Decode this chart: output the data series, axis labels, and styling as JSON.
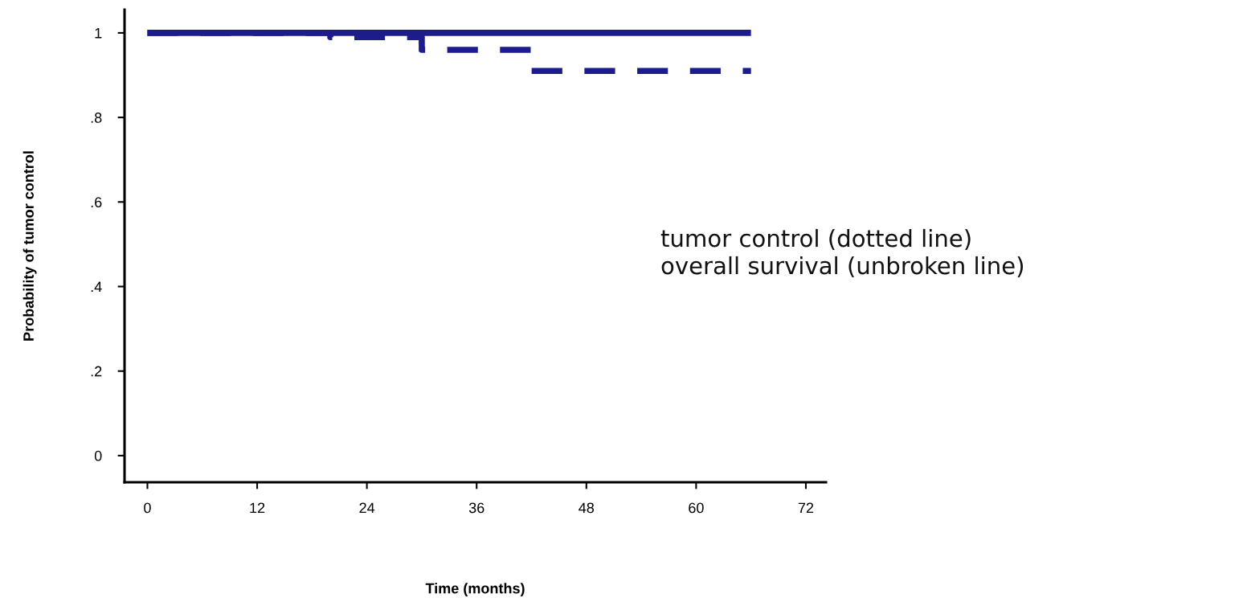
{
  "chart_data": {
    "type": "step",
    "xlabel": "Time (months)",
    "ylabel": "Probability of tumor control",
    "series": [
      {
        "x": [
          0,
          20,
          30,
          42,
          66
        ],
        "values": [
          1,
          0.99,
          0.96,
          0.91,
          0.91
        ],
        "color": "#1c1c8c",
        "line_style": "dashed"
      },
      {
        "x": [
          0,
          66
        ],
        "values": [
          1,
          1
        ],
        "color": "#1c1c8c",
        "line_style": "solid"
      }
    ],
    "xlim": [
      -2.5,
      74.2
    ],
    "ylim": [
      -0.063,
      1.055
    ],
    "xticks": [
      0,
      12,
      24,
      36,
      48,
      60,
      72
    ],
    "yticks": [
      0,
      {
        "value": 0.2,
        "label": ".2"
      },
      {
        "value": 0.4,
        "label": ".4"
      },
      {
        "value": 0.6,
        "label": ".6"
      },
      {
        "value": 0.8,
        "label": ".8"
      },
      1
    ],
    "annotations": [
      "tumor control (dotted line)",
      "overall survival (unbroken line)"
    ],
    "grid": false,
    "legend": false,
    "marker": "none"
  }
}
